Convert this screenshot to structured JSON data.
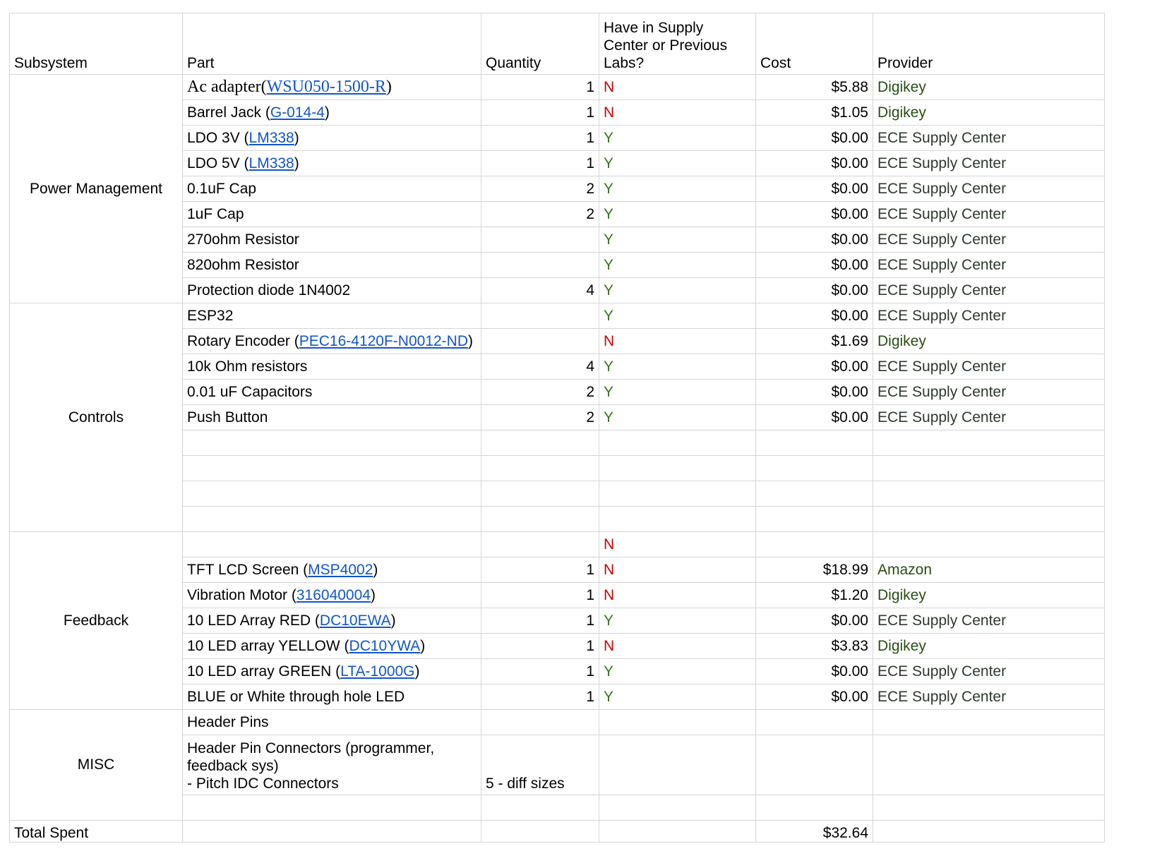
{
  "headers": {
    "subsystem": "Subsystem",
    "part": "Part",
    "quantity": "Quantity",
    "have": "Have in Supply Center or Previous Labs?",
    "cost": "Cost",
    "provider": "Provider"
  },
  "groups": {
    "power": "Power Management",
    "controls": "Controls",
    "feedback": "Feedback",
    "misc": "MISC"
  },
  "rows": [
    {
      "part": "Ac adapter(",
      "link": "WSU050-1500-R",
      "after": ")",
      "qty": "1",
      "have": "N",
      "cost": "$5.88",
      "provider": "Digikey"
    },
    {
      "part": "Barrel Jack (",
      "link": "G-014-4",
      "after": ")",
      "qty": "1",
      "have": "N",
      "cost": "$1.05",
      "provider": "Digikey"
    },
    {
      "part": "LDO 3V (",
      "link": "LM338",
      "after": ")",
      "qty": "1",
      "have": "Y",
      "cost": "$0.00",
      "provider": "ECE Supply Center"
    },
    {
      "part": "LDO 5V (",
      "link": "LM338",
      "after": ")",
      "qty": "1",
      "have": "Y",
      "cost": "$0.00",
      "provider": "ECE Supply Center"
    },
    {
      "part": "0.1uF Cap",
      "link": "",
      "after": "",
      "qty": "2",
      "have": "Y",
      "cost": "$0.00",
      "provider": "ECE Supply Center"
    },
    {
      "part": "1uF Cap",
      "link": "",
      "after": "",
      "qty": "2",
      "have": "Y",
      "cost": "$0.00",
      "provider": "ECE Supply Center"
    },
    {
      "part": "270ohm Resistor",
      "link": "",
      "after": "",
      "qty": "",
      "have": "Y",
      "cost": "$0.00",
      "provider": "ECE Supply Center"
    },
    {
      "part": "820ohm Resistor",
      "link": "",
      "after": "",
      "qty": "",
      "have": "Y",
      "cost": "$0.00",
      "provider": "ECE Supply Center"
    },
    {
      "part": "Protection diode 1N4002",
      "link": "",
      "after": "",
      "qty": "4",
      "have": "Y",
      "cost": "$0.00",
      "provider": "ECE Supply Center"
    },
    {
      "part": "ESP32",
      "link": "",
      "after": "",
      "qty": "",
      "have": "Y",
      "cost": "$0.00",
      "provider": "ECE Supply Center"
    },
    {
      "part": "Rotary Encoder (",
      "link": "PEC16-4120F-N0012-ND",
      "after": ")",
      "qty": "",
      "have": "N",
      "cost": "$1.69",
      "provider": "Digikey"
    },
    {
      "part": "10k Ohm resistors",
      "link": "",
      "after": "",
      "qty": "4",
      "have": "Y",
      "cost": "$0.00",
      "provider": "ECE Supply Center"
    },
    {
      "part": "0.01 uF Capacitors",
      "link": "",
      "after": "",
      "qty": "2",
      "have": "Y",
      "cost": "$0.00",
      "provider": "ECE Supply Center"
    },
    {
      "part": "Push Button",
      "link": "",
      "after": "",
      "qty": "2",
      "have": "Y",
      "cost": "$0.00",
      "provider": "ECE Supply Center"
    },
    {
      "part": "",
      "link": "",
      "after": "",
      "qty": "",
      "have": "",
      "cost": "",
      "provider": ""
    },
    {
      "part": "",
      "link": "",
      "after": "",
      "qty": "",
      "have": "",
      "cost": "",
      "provider": ""
    },
    {
      "part": "",
      "link": "",
      "after": "",
      "qty": "",
      "have": "",
      "cost": "",
      "provider": ""
    },
    {
      "part": "",
      "link": "",
      "after": "",
      "qty": "",
      "have": "",
      "cost": "",
      "provider": ""
    },
    {
      "part": "",
      "link": "",
      "after": "",
      "qty": "",
      "have": "N",
      "cost": "",
      "provider": ""
    },
    {
      "part": "TFT LCD Screen (",
      "link": "MSP4002",
      "after": ")",
      "qty": "1",
      "have": "N",
      "cost": "$18.99",
      "provider": "Amazon"
    },
    {
      "part": "Vibration Motor (",
      "link": "316040004",
      "after": ")",
      "qty": "1",
      "have": "N",
      "cost": "$1.20",
      "provider": "Digikey"
    },
    {
      "part": "10 LED Array RED (",
      "link": "DC10EWA",
      "after": ")",
      "qty": "1",
      "have": "Y",
      "cost": "$0.00",
      "provider": "ECE Supply Center"
    },
    {
      "part": "10 LED array YELLOW (",
      "link": "DC10YWA",
      "after": ")",
      "qty": "1",
      "have": "N",
      "cost": "$3.83",
      "provider": "Digikey"
    },
    {
      "part": "10 LED array GREEN (",
      "link": "LTA-1000G",
      "after": ")",
      "qty": "1",
      "have": "Y",
      "cost": "$0.00",
      "provider": "ECE Supply Center"
    },
    {
      "part": "BLUE or White through hole LED",
      "link": "",
      "after": "",
      "qty": "1",
      "have": "Y",
      "cost": "$0.00",
      "provider": "ECE Supply Center"
    },
    {
      "part": "Header Pins",
      "link": "",
      "after": "",
      "qty": "",
      "have": "",
      "cost": "",
      "provider": ""
    },
    {
      "part": "Header Pin Connectors (programmer, feedback sys)\n- Pitch IDC Connectors",
      "link": "",
      "after": "",
      "qty": "5 - diff sizes",
      "have": "",
      "cost": "",
      "provider": ""
    },
    {
      "part": "",
      "link": "",
      "after": "",
      "qty": "",
      "have": "",
      "cost": "",
      "provider": ""
    }
  ],
  "total": {
    "label": "Total Spent",
    "value": "$32.64"
  }
}
